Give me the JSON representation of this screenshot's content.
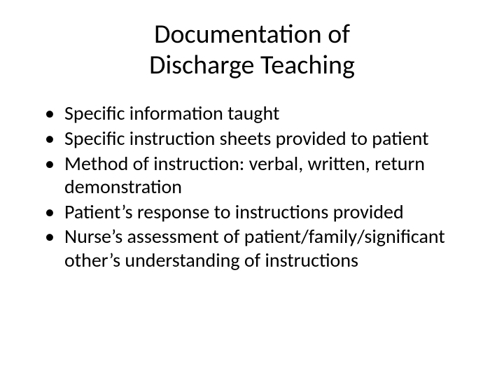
{
  "slide": {
    "title_line1": "Documentation of",
    "title_line2": "Discharge Teaching",
    "title_fontsize": 38,
    "title_color": "#000000",
    "body_fontsize": 28,
    "body_color": "#000000",
    "background_color": "#ffffff",
    "bullets": [
      "Specific information taught",
      "Specific instruction sheets provided to patient",
      "Method of instruction: verbal, written, return demonstration",
      "Patient’s response to instructions provided",
      "Nurse’s assessment of patient/family/significant other’s understanding of instructions"
    ]
  }
}
